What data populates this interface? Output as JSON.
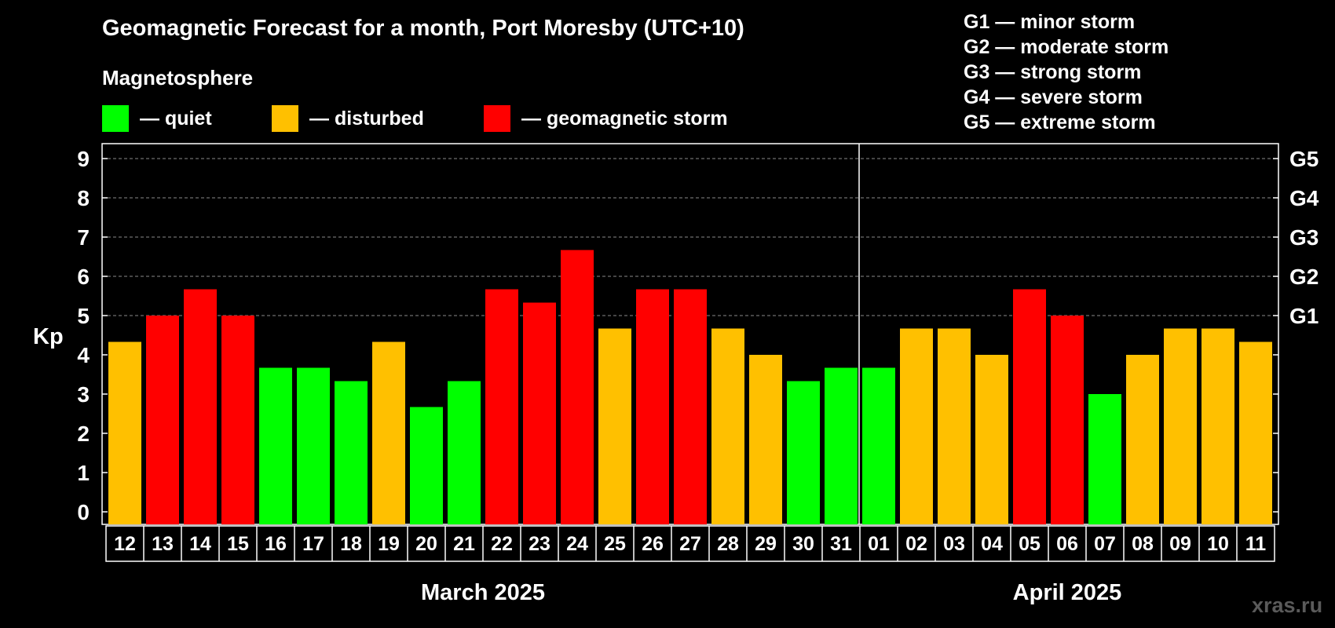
{
  "header": {
    "title": "Geomagnetic Forecast for a month, Port Moresby (UTC+10)",
    "subtitle": "Magnetosphere"
  },
  "legend": [
    {
      "label": "— quiet",
      "color": "#00ff00"
    },
    {
      "label": "— disturbed",
      "color": "#ffc000"
    },
    {
      "label": "— geomagnetic storm",
      "color": "#ff0000"
    }
  ],
  "storm_scale": [
    "G1 — minor storm",
    "G2 — moderate storm",
    "G3 — strong storm",
    "G4 — severe storm",
    "G5 — extreme storm"
  ],
  "watermark": "xras.ru",
  "chart_data": {
    "type": "bar",
    "ylabel": "Kp",
    "ylim": [
      0,
      9
    ],
    "yticks": [
      "0",
      "1",
      "2",
      "3",
      "4",
      "5",
      "6",
      "7",
      "8",
      "9"
    ],
    "right_axis": [
      {
        "value": 5,
        "label": "G1"
      },
      {
        "value": 6,
        "label": "G2"
      },
      {
        "value": 7,
        "label": "G3"
      },
      {
        "value": 8,
        "label": "G4"
      },
      {
        "value": 9,
        "label": "G5"
      }
    ],
    "grid": "dashed horizontal at 5–9",
    "months": [
      {
        "label": "March 2025",
        "days": 20
      },
      {
        "label": "April 2025",
        "days": 11
      }
    ],
    "categories": [
      "12",
      "13",
      "14",
      "15",
      "16",
      "17",
      "18",
      "19",
      "20",
      "21",
      "22",
      "23",
      "24",
      "25",
      "26",
      "27",
      "28",
      "29",
      "30",
      "31",
      "01",
      "02",
      "03",
      "04",
      "05",
      "06",
      "07",
      "08",
      "09",
      "10",
      "11"
    ],
    "values": [
      4.33,
      5,
      5.67,
      5,
      3.67,
      3.67,
      3.33,
      4.33,
      2.67,
      3.33,
      5.67,
      5.33,
      6.67,
      4.67,
      5.67,
      5.67,
      4.67,
      4,
      3.33,
      3.67,
      3.67,
      4.67,
      4.67,
      4,
      5.67,
      5,
      3,
      4,
      4.67,
      4.67,
      4.33
    ],
    "levels": [
      "disturbed",
      "storm",
      "storm",
      "storm",
      "quiet",
      "quiet",
      "quiet",
      "disturbed",
      "quiet",
      "quiet",
      "storm",
      "storm",
      "storm",
      "disturbed",
      "storm",
      "storm",
      "disturbed",
      "disturbed",
      "quiet",
      "quiet",
      "quiet",
      "disturbed",
      "disturbed",
      "disturbed",
      "storm",
      "storm",
      "quiet",
      "disturbed",
      "disturbed",
      "disturbed",
      "disturbed"
    ],
    "colors": {
      "quiet": "#00ff00",
      "disturbed": "#ffc000",
      "storm": "#ff0000"
    }
  }
}
